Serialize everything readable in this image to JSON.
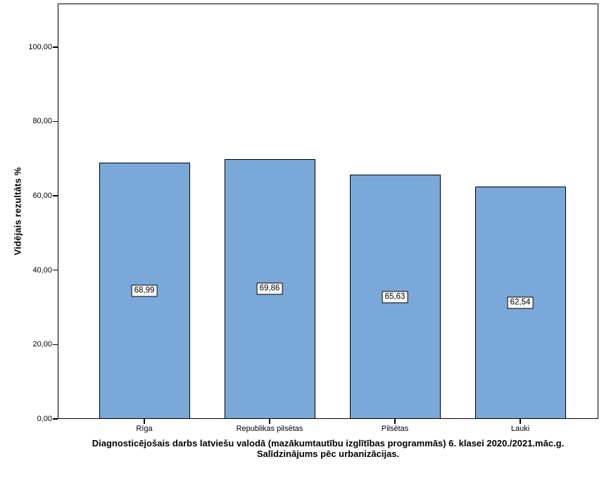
{
  "chart_data": {
    "type": "bar",
    "title_line1": "Diagnosticējošais darbs latviešu valodā (mazākumtautību izglītības programmās) 6. klasei 2020./2021.māc.g.",
    "title_line2": "Salīdzinājums pēc urbanizācijas.",
    "xlabel": "",
    "ylabel": "Vidējais rezultāts %",
    "categories": [
      "Rīga",
      "Republikas pilsētas",
      "Pilsētas",
      "Lauki"
    ],
    "values": [
      68.99,
      69.86,
      65.63,
      62.54
    ],
    "value_labels": [
      "68,99",
      "69,86",
      "65,63",
      "62,54"
    ],
    "yticks": [
      0,
      20,
      40,
      60,
      80,
      100
    ],
    "ytick_labels": [
      "0,00",
      "20,00",
      "40,00",
      "60,00",
      "80,00",
      "100,00"
    ],
    "ylim": [
      0,
      111.7
    ],
    "grid": false,
    "legend": "none",
    "bar_color": "#7AA8D8",
    "bar_border_color": "#000000",
    "frame_color": "#000000",
    "background_color": "#FFFFFF"
  }
}
